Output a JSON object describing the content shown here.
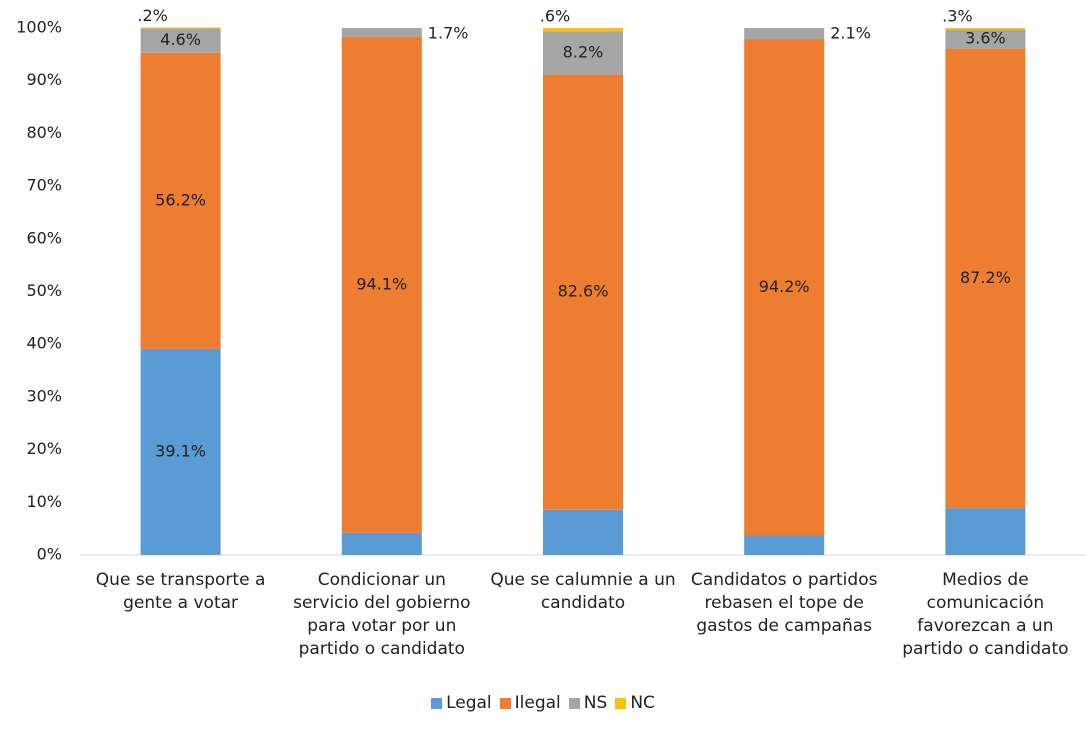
{
  "chart_data": {
    "type": "stacked_bar",
    "categories": [
      "Que se transporte a gente a votar",
      "Condicionar un servicio del gobierno para votar por un partido o candidato",
      "Que se calumnie a un candidato",
      "Candidatos o partidos rebasen el tope de gastos de campañas",
      "Medios de comunicación favorezcan a un partido o candidato"
    ],
    "series": [
      {
        "name": "Legal",
        "color": "#5b9bd5",
        "values": [
          39.1,
          4.2,
          8.6,
          3.7,
          8.9
        ],
        "value_labels": [
          "39.1%",
          null,
          null,
          null,
          null
        ]
      },
      {
        "name": "Ilegal",
        "color": "#ed7d31",
        "values": [
          56.2,
          94.1,
          82.6,
          94.2,
          87.2
        ],
        "value_labels": [
          "56.2%",
          "94.1%",
          "82.6%",
          "94.2%",
          "87.2%"
        ]
      },
      {
        "name": "NS",
        "color": "#a5a5a5",
        "values": [
          4.6,
          1.7,
          8.2,
          2.1,
          3.6
        ],
        "value_labels": [
          "4.6%",
          "1.7%",
          "8.2%",
          "2.1%",
          "3.6%"
        ]
      },
      {
        "name": "NC",
        "color": "#ffc000",
        "values": [
          0.2,
          0,
          0.6,
          0,
          0.3
        ],
        "value_labels": [
          ".2%",
          null,
          ".6%",
          null,
          ".3%"
        ]
      }
    ],
    "ylim": [
      0,
      100
    ],
    "yticks": [
      {
        "value": 0,
        "label": "0%"
      },
      {
        "value": 10,
        "label": "10%"
      },
      {
        "value": 20,
        "label": "20%"
      },
      {
        "value": 30,
        "label": "30%"
      },
      {
        "value": 40,
        "label": "40%"
      },
      {
        "value": 50,
        "label": "50%"
      },
      {
        "value": 60,
        "label": "60%"
      },
      {
        "value": 70,
        "label": "70%"
      },
      {
        "value": 80,
        "label": "80%"
      },
      {
        "value": 90,
        "label": "90%"
      },
      {
        "value": 100,
        "label": "100%"
      }
    ],
    "grid": false,
    "legend": "bottom"
  }
}
